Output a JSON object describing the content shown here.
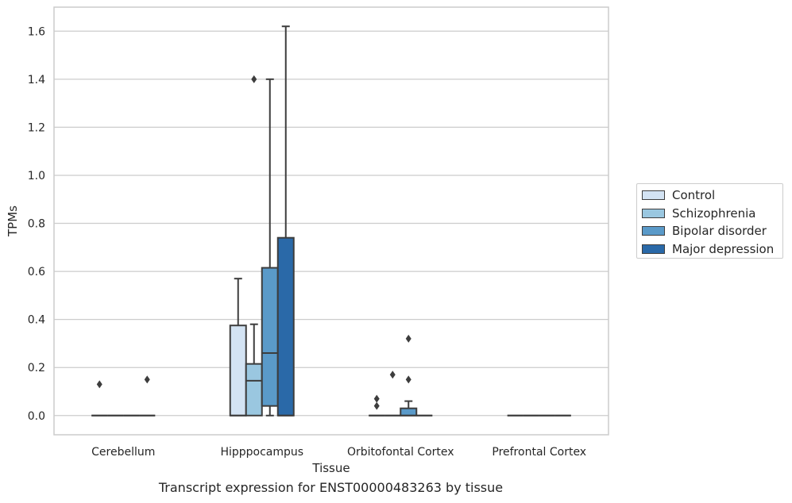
{
  "chart_data": {
    "type": "box",
    "xlabel": "Tissue",
    "ylabel": "TPMs",
    "ylim": [
      -0.08,
      1.7
    ],
    "yticks": [
      0.0,
      0.2,
      0.4,
      0.6,
      0.8,
      1.0,
      1.2,
      1.4,
      1.6
    ],
    "ytick_labels": [
      "0.0",
      "0.2",
      "0.4",
      "0.6",
      "0.8",
      "1.0",
      "1.2",
      "1.4",
      "1.6"
    ],
    "categories": [
      "Cerebellum",
      "Hipppocampus",
      "Orbitofontal Cortex",
      "Prefrontal Cortex"
    ],
    "grid": "horizontal",
    "legend_position": "right",
    "series": [
      {
        "name": "Control",
        "color": "#d3e3f3",
        "boxes": [
          {
            "q1": 0,
            "median": 0,
            "q3": 0,
            "whisker_low": 0,
            "whisker_high": 0,
            "outliers": [
              0.13
            ]
          },
          {
            "q1": 0,
            "median": 0,
            "q3": 0.375,
            "whisker_low": 0,
            "whisker_high": 0.57,
            "outliers": []
          },
          {
            "q1": 0,
            "median": 0,
            "q3": 0,
            "whisker_low": 0,
            "whisker_high": 0,
            "outliers": [
              0.04,
              0.07
            ]
          },
          {
            "q1": 0,
            "median": 0,
            "q3": 0,
            "whisker_low": 0,
            "whisker_high": 0,
            "outliers": []
          }
        ]
      },
      {
        "name": "Schizophrenia",
        "color": "#9ac7e0",
        "boxes": [
          {
            "q1": 0,
            "median": 0,
            "q3": 0,
            "whisker_low": 0,
            "whisker_high": 0,
            "outliers": []
          },
          {
            "q1": 0,
            "median": 0.145,
            "q3": 0.215,
            "whisker_low": 0,
            "whisker_high": 0.38,
            "outliers": [
              1.4
            ]
          },
          {
            "q1": 0,
            "median": 0,
            "q3": 0,
            "whisker_low": 0,
            "whisker_high": 0,
            "outliers": [
              0.17
            ]
          },
          {
            "q1": 0,
            "median": 0,
            "q3": 0,
            "whisker_low": 0,
            "whisker_high": 0,
            "outliers": []
          }
        ]
      },
      {
        "name": "Bipolar disorder",
        "color": "#5a9ac9",
        "boxes": [
          {
            "q1": 0,
            "median": 0,
            "q3": 0,
            "whisker_low": 0,
            "whisker_high": 0,
            "outliers": []
          },
          {
            "q1": 0.04,
            "median": 0.26,
            "q3": 0.615,
            "whisker_low": 0,
            "whisker_high": 1.4,
            "outliers": []
          },
          {
            "q1": 0,
            "median": 0,
            "q3": 0.03,
            "whisker_low": 0,
            "whisker_high": 0.06,
            "outliers": [
              0.15,
              0.32
            ]
          },
          {
            "q1": 0,
            "median": 0,
            "q3": 0,
            "whisker_low": 0,
            "whisker_high": 0,
            "outliers": []
          }
        ]
      },
      {
        "name": "Major depression",
        "color": "#2a69a8",
        "boxes": [
          {
            "q1": 0,
            "median": 0,
            "q3": 0,
            "whisker_low": 0,
            "whisker_high": 0,
            "outliers": [
              0.15
            ]
          },
          {
            "q1": 0,
            "median": 0,
            "q3": 0.74,
            "whisker_low": 0,
            "whisker_high": 1.62,
            "outliers": []
          },
          {
            "q1": 0,
            "median": 0,
            "q3": 0,
            "whisker_low": 0,
            "whisker_high": 0,
            "outliers": []
          },
          {
            "q1": 0,
            "median": 0,
            "q3": 0,
            "whisker_low": 0,
            "whisker_high": 0,
            "outliers": []
          }
        ]
      }
    ]
  },
  "caption": "Transcript expression for ENST00000483263 by tissue"
}
